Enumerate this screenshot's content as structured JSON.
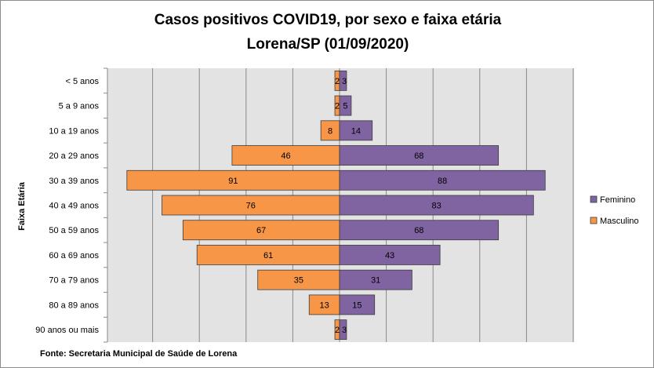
{
  "chart_data": {
    "type": "bar",
    "orientation": "horizontal",
    "title": "Casos positivos COVID19, por sexo e faixa etária",
    "subtitle": "Lorena/SP (01/09/2020)",
    "ylabel": "Faixa Etária",
    "xlabel": "",
    "categories": [
      "< 5 anos",
      "5 a 9 anos",
      "10 a 19 anos",
      "20 a 29 anos",
      "30 a 39 anos",
      "40 a 49 anos",
      "50 a 59 anos",
      "60 a 69 anos",
      "70 a 79 anos",
      "80 a 89 anos",
      "90 anos ou mais"
    ],
    "series": [
      {
        "name": "Feminino",
        "color": "#8064a2",
        "values": [
          3,
          5,
          14,
          68,
          88,
          83,
          68,
          43,
          31,
          15,
          3
        ]
      },
      {
        "name": "Masculino",
        "color": "#f79646",
        "values": [
          2,
          2,
          8,
          46,
          91,
          76,
          67,
          61,
          35,
          13,
          2
        ]
      }
    ],
    "xlim": [
      -100,
      100
    ],
    "gridlines": "vertical",
    "legend_position": "right",
    "source_note": "Fonte: Secretaria Municipal  de Saúde de Lorena"
  }
}
